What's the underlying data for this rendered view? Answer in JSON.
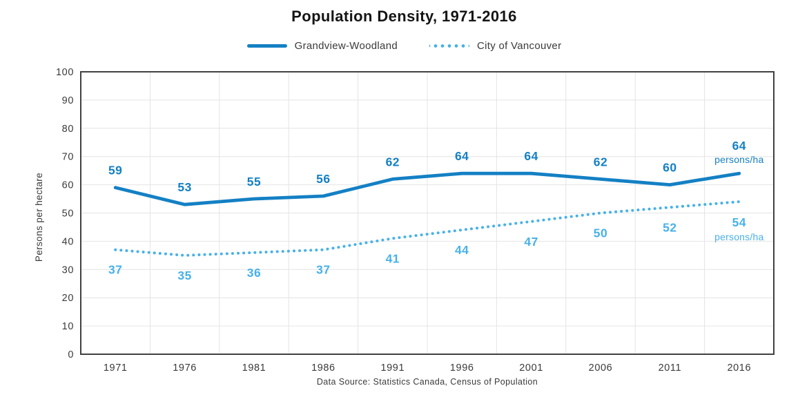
{
  "chart_data": {
    "type": "line",
    "title": "Population Density, 1971-2016",
    "categories": [
      "1971",
      "1976",
      "1981",
      "1986",
      "1991",
      "1996",
      "2001",
      "2006",
      "2011",
      "2016"
    ],
    "series": [
      {
        "name": "Grandview-Woodland",
        "values": [
          59,
          53,
          55,
          56,
          62,
          64,
          64,
          62,
          60,
          64
        ],
        "style": "solid",
        "color": "#1480c4",
        "label_position": "above"
      },
      {
        "name": "City of Vancouver",
        "values": [
          37,
          35,
          36,
          37,
          41,
          44,
          47,
          50,
          52,
          54
        ],
        "style": "dotted",
        "color": "#47b1e9",
        "label_position": "below"
      }
    ],
    "last_point_unit": "persons/ha",
    "ylabel": "Persons per hectare",
    "xlabel": "",
    "ylim": [
      0,
      100
    ],
    "yticks": [
      0,
      10,
      20,
      30,
      40,
      50,
      60,
      70,
      80,
      90,
      100
    ],
    "grid": true,
    "legend_position": "top",
    "source_note": "Data Source: Statistics Canada, Census of Population"
  },
  "colors": {
    "grid": "#e4e4e4",
    "plot_border": "#404040",
    "title_text": "#151515",
    "axis_text": "#3a3a3a"
  }
}
